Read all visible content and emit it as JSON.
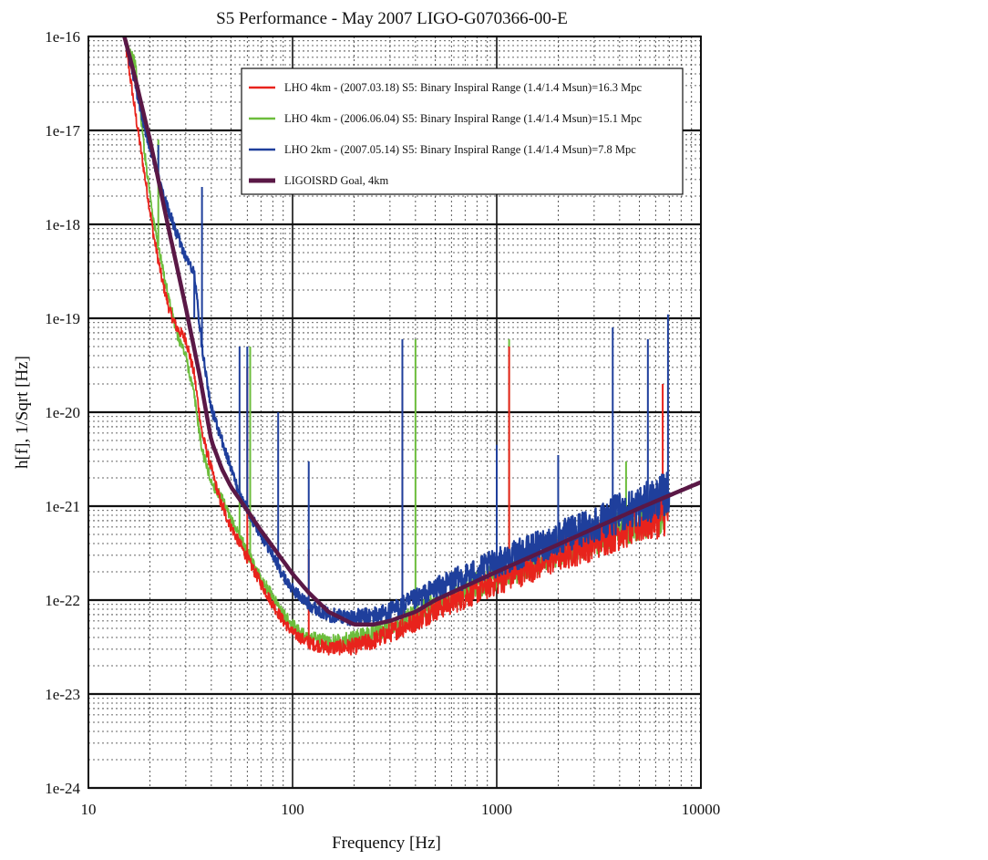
{
  "chart_data": {
    "type": "line",
    "title": "S5 Performance - May 2007   LIGO-G070366-00-E",
    "xlabel": "Frequency [Hz]",
    "ylabel": "h[f], 1/Sqrt [Hz]",
    "xscale": "log",
    "yscale": "log",
    "xlim": [
      10,
      10000
    ],
    "ylim": [
      1e-24,
      1e-16
    ],
    "x_tick_labels": [
      "10",
      "100",
      "1000",
      "10000"
    ],
    "y_tick_labels": [
      "1e-16",
      "1e-17",
      "1e-18",
      "1e-19",
      "1e-20",
      "1e-21",
      "1e-22",
      "1e-23",
      "1e-24"
    ],
    "grid": true,
    "legend_position": "top-right",
    "colors": {
      "red": "#e8231c",
      "green": "#6cbd3c",
      "blue": "#1f3f9c",
      "goal": "#5a1846"
    },
    "series": [
      {
        "name": "LHO 4km - (2007.03.18) S5: Binary Inspiral Range (1.4/1.4 Msun)=16.3 Mpc",
        "color": "#e8231c",
        "x": [
          15,
          17,
          19,
          21,
          23,
          25,
          27,
          30,
          33,
          36,
          40,
          45,
          50,
          55,
          60,
          70,
          80,
          90,
          100,
          120,
          150,
          200,
          250,
          300,
          400,
          500,
          700,
          1000,
          1500,
          2000,
          3000,
          4000,
          5000,
          6000,
          7000
        ],
        "y": [
          1e-16,
          1.5e-17,
          3e-18,
          7e-19,
          2.5e-19,
          1.2e-19,
          8e-20,
          6e-20,
          2.5e-20,
          6e-21,
          2.5e-21,
          1e-21,
          6e-22,
          4e-22,
          2.8e-22,
          1.5e-22,
          9e-23,
          6e-23,
          4.5e-23,
          3.5e-23,
          3.1e-23,
          3.2e-23,
          3.7e-23,
          4.5e-23,
          6e-23,
          8e-23,
          1.1e-22,
          1.6e-22,
          2.3e-22,
          3e-22,
          4.2e-22,
          5.5e-22,
          6.5e-22,
          7.5e-22,
          8.5e-22
        ],
        "peaks": [
          {
            "x": 46,
            "y": 1.1e-21
          },
          {
            "x": 60,
            "y": 3e-20
          },
          {
            "x": 120,
            "y": 3.5e-22
          },
          {
            "x": 345,
            "y": 2e-20
          },
          {
            "x": 1150,
            "y": 5e-20
          },
          {
            "x": 6500,
            "y": 2e-20
          }
        ]
      },
      {
        "name": "LHO 4km - (2006.06.04) S5: Binary Inspiral Range (1.4/1.4 Msun)=15.1 Mpc",
        "color": "#6cbd3c",
        "x": [
          15,
          17,
          19,
          21,
          23,
          25,
          27,
          30,
          33,
          36,
          40,
          45,
          50,
          55,
          60,
          70,
          80,
          90,
          100,
          120,
          150,
          200,
          250,
          300,
          400,
          500,
          700,
          1000,
          1500,
          2000,
          3000,
          4000,
          5000,
          6000,
          7000
        ],
        "y": [
          1e-16,
          5e-17,
          5e-18,
          1e-18,
          3.5e-19,
          1.5e-19,
          7e-20,
          4e-20,
          1.5e-20,
          4e-21,
          1.8e-21,
          1.2e-21,
          7e-22,
          5e-22,
          3.2e-22,
          1.7e-22,
          1.1e-22,
          7e-23,
          5.5e-23,
          4e-23,
          3.6e-23,
          3.8e-23,
          4.5e-23,
          5.3e-23,
          7e-23,
          9e-23,
          1.3e-22,
          1.8e-22,
          2.6e-22,
          3.5e-22,
          4.8e-22,
          6e-22,
          7.2e-22,
          8.2e-22,
          9.5e-22
        ],
        "peaks": [
          {
            "x": 16,
            "y": 6e-17
          },
          {
            "x": 22,
            "y": 8e-18
          },
          {
            "x": 55,
            "y": 2e-21
          },
          {
            "x": 62,
            "y": 5e-20
          },
          {
            "x": 400,
            "y": 6e-20
          },
          {
            "x": 1150,
            "y": 6e-20
          },
          {
            "x": 4300,
            "y": 3e-21
          }
        ]
      },
      {
        "name": "LHO 2km - (2007.05.14) S5: Binary Inspiral Range (1.4/1.4 Msun)=7.8 Mpc",
        "color": "#1f3f9c",
        "x": [
          15,
          17,
          19,
          21,
          23,
          25,
          27,
          30,
          33,
          36,
          40,
          45,
          50,
          55,
          60,
          70,
          80,
          90,
          100,
          120,
          150,
          200,
          250,
          300,
          400,
          500,
          700,
          1000,
          1500,
          2000,
          3000,
          4000,
          5000,
          6000,
          7000
        ],
        "y": [
          1e-16,
          3e-17,
          1e-17,
          4.5e-18,
          2.2e-18,
          1.3e-18,
          8e-19,
          4.5e-19,
          3e-19,
          5e-20,
          1.1e-20,
          5e-21,
          2.5e-21,
          1.3e-21,
          9e-22,
          5e-22,
          3e-22,
          1.8e-22,
          1.3e-22,
          9e-23,
          7e-23,
          6.5e-23,
          6.8e-23,
          7.5e-23,
          1e-22,
          1.3e-22,
          1.8e-22,
          2.5e-22,
          3.5e-22,
          4.5e-22,
          6.5e-22,
          8.5e-22,
          1e-21,
          1.2e-21,
          1.4e-21
        ],
        "peaks": [
          {
            "x": 22,
            "y": 7e-18
          },
          {
            "x": 36,
            "y": 2.5e-18
          },
          {
            "x": 33,
            "y": 1e-19
          },
          {
            "x": 55,
            "y": 5e-20
          },
          {
            "x": 60,
            "y": 5e-20
          },
          {
            "x": 85,
            "y": 1e-20
          },
          {
            "x": 120,
            "y": 3e-21
          },
          {
            "x": 345,
            "y": 6e-20
          },
          {
            "x": 1000,
            "y": 4.5e-21
          },
          {
            "x": 2000,
            "y": 3.5e-21
          },
          {
            "x": 3700,
            "y": 8e-20
          },
          {
            "x": 5500,
            "y": 6e-20
          },
          {
            "x": 6900,
            "y": 1.1e-19
          }
        ]
      },
      {
        "name": "LIGOISRD Goal, 4km",
        "color": "#5a1846",
        "x": [
          15,
          17,
          20,
          25,
          30,
          35,
          40,
          45,
          50,
          60,
          70,
          80,
          100,
          120,
          150,
          200,
          250,
          300,
          400,
          500,
          700,
          1000,
          2000,
          3000,
          5000,
          7000,
          10000
        ],
        "y": [
          1e-16,
          3.5e-17,
          8e-18,
          8e-19,
          1.3e-19,
          2.5e-20,
          5e-21,
          2.5e-21,
          1.6e-21,
          9e-22,
          5.5e-22,
          3.7e-22,
          1.9e-22,
          1.2e-22,
          7.5e-23,
          5.5e-23,
          5.5e-23,
          6e-23,
          7.5e-23,
          1e-22,
          1.4e-22,
          2e-22,
          3.9e-22,
          5.8e-22,
          9.5e-22,
          1.3e-21,
          1.8e-21
        ],
        "peaks": []
      }
    ]
  }
}
